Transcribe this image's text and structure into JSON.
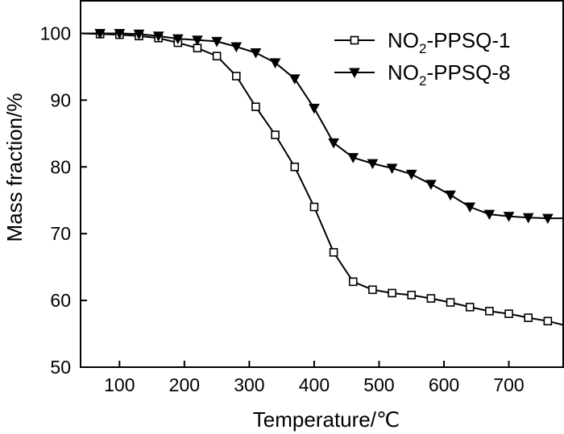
{
  "chart_data": {
    "type": "line",
    "title": "",
    "xlabel": "Temperature/℃",
    "ylabel": "Mass fraction/%",
    "xlim": [
      40,
      785
    ],
    "ylim": [
      50,
      105
    ],
    "xticks": [
      100,
      200,
      300,
      400,
      500,
      600,
      700
    ],
    "yticks": [
      50,
      60,
      70,
      80,
      90,
      100
    ],
    "grid": false,
    "legend_position": "top-right",
    "series": [
      {
        "name": "NO2-PPSQ-1",
        "legend": {
          "prefix": "NO",
          "subscript": "2",
          "suffix": "-PPSQ-1"
        },
        "marker": "open-square",
        "x": [
          40,
          70,
          100,
          130,
          160,
          190,
          220,
          250,
          280,
          310,
          340,
          370,
          400,
          430,
          460,
          490,
          520,
          550,
          580,
          610,
          640,
          670,
          700,
          730,
          760,
          785
        ],
        "y": [
          100,
          99.9,
          99.8,
          99.6,
          99.3,
          98.6,
          97.8,
          96.6,
          93.6,
          89.0,
          84.8,
          80.0,
          74.0,
          67.2,
          62.8,
          61.6,
          61.1,
          60.8,
          60.3,
          59.7,
          59.0,
          58.4,
          58.0,
          57.4,
          56.9,
          56.3
        ],
        "marked_x": [
          70,
          100,
          130,
          160,
          190,
          220,
          250,
          280,
          310,
          340,
          370,
          400,
          430,
          460,
          490,
          520,
          550,
          580,
          610,
          640,
          670,
          700,
          730,
          760
        ]
      },
      {
        "name": "NO2-PPSQ-8",
        "legend": {
          "prefix": "NO",
          "subscript": "2",
          "suffix": "-PPSQ-8"
        },
        "marker": "filled-down-triangle",
        "x": [
          40,
          70,
          100,
          130,
          160,
          190,
          220,
          250,
          280,
          310,
          340,
          370,
          400,
          430,
          460,
          490,
          520,
          550,
          580,
          610,
          640,
          670,
          700,
          730,
          760,
          785
        ],
        "y": [
          100,
          100,
          100,
          99.9,
          99.6,
          99.2,
          99.0,
          98.8,
          98.0,
          97.1,
          95.6,
          93.2,
          88.8,
          83.6,
          81.4,
          80.5,
          79.8,
          78.9,
          77.4,
          75.8,
          74.0,
          72.9,
          72.6,
          72.4,
          72.3,
          72.3
        ],
        "marked_x": [
          70,
          100,
          130,
          160,
          190,
          220,
          250,
          280,
          310,
          340,
          370,
          400,
          430,
          460,
          490,
          520,
          550,
          580,
          610,
          640,
          670,
          700,
          730,
          760
        ]
      }
    ]
  }
}
